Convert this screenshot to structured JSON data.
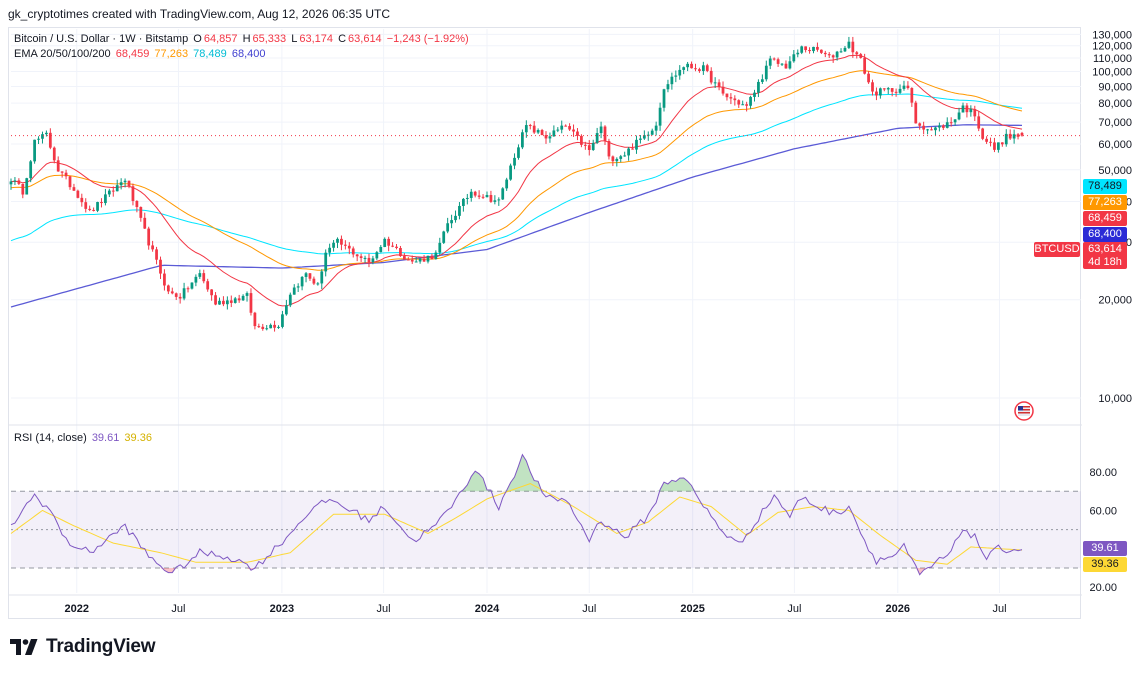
{
  "header": {
    "attribution": "gk_cryptotimes created with TradingView.com, Aug 12, 2026 06:35 UTC"
  },
  "legend": {
    "symbol": "Bitcoin / U.S. Dollar · 1W · Bitstamp",
    "open_label": "O",
    "open": "64,857",
    "high_label": "H",
    "high": "65,333",
    "low_label": "L",
    "low": "63,174",
    "close_label": "C",
    "close": "63,614",
    "change": "−1,243 (−1.92%)",
    "ema_label": "EMA 20/50/100/200",
    "ema20": "68,459",
    "ema50": "77,263",
    "ema100": "78,489",
    "ema200": "68,400"
  },
  "rsi_legend": {
    "label": "RSI (14, close)",
    "rsi": "39.61",
    "rsi_ma": "39.36"
  },
  "price_tags": {
    "ema100": "78,489",
    "ema50": "77,263",
    "ema20": "68,459",
    "ema200": "68,400",
    "symbol": "BTCUSD",
    "last": "63,614",
    "countdown": "4d 18h"
  },
  "colors": {
    "up": "#089981",
    "down": "#f23645",
    "ema20": "#f23645",
    "ema50": "#ff9800",
    "ema100": "#00e5ff",
    "ema200": "#5b5bd6",
    "rsi": "#7e57c2",
    "rsi_ma": "#fdd835",
    "rsi_band": "#7e57c2"
  },
  "brand": {
    "name": "TradingView",
    "icon": "tradingview-logo-icon"
  },
  "chart_data": [
    {
      "type": "candlestick",
      "title": "Bitcoin / U.S. Dollar · 1W · Bitstamp",
      "y_scale": "log",
      "y_ticks": [
        {
          "value": 10000,
          "label": "10,000"
        },
        {
          "value": 20000,
          "label": "20,000"
        },
        {
          "value": 30000,
          "label": "30,000"
        },
        {
          "value": 40000,
          "label": "40,000"
        },
        {
          "value": 50000,
          "label": "50,000"
        },
        {
          "value": 60000,
          "label": "60,000"
        },
        {
          "value": 70000,
          "label": "70,000"
        },
        {
          "value": 80000,
          "label": "80,000"
        },
        {
          "value": 90000,
          "label": "90,000"
        },
        {
          "value": 100000,
          "label": "100,000"
        },
        {
          "value": 110000,
          "label": "110,000"
        },
        {
          "value": 120000,
          "label": "120,000"
        },
        {
          "value": 130000,
          "label": "130,000"
        }
      ],
      "ylim": [
        8500,
        135000
      ],
      "x_ticks": [
        {
          "date": "2022-01-01",
          "label": "2022"
        },
        {
          "date": "2022-07-01",
          "label": "Jul"
        },
        {
          "date": "2023-01-01",
          "label": "2023"
        },
        {
          "date": "2023-07-01",
          "label": "Jul"
        },
        {
          "date": "2024-01-01",
          "label": "2024"
        },
        {
          "date": "2024-07-01",
          "label": "Jul"
        },
        {
          "date": "2025-01-01",
          "label": "2025"
        },
        {
          "date": "2025-07-01",
          "label": "Jul"
        },
        {
          "date": "2026-01-01",
          "label": "2026"
        },
        {
          "date": "2026-07-01",
          "label": "Jul"
        }
      ],
      "xlim": [
        "2021-09-06",
        "2026-11-23"
      ],
      "close_keypoints": [
        [
          "2021-09-06",
          47000
        ],
        [
          "2021-09-27",
          43000
        ],
        [
          "2021-10-18",
          61000
        ],
        [
          "2021-11-08",
          64000
        ],
        [
          "2021-11-29",
          50000
        ],
        [
          "2022-01-03",
          42000
        ],
        [
          "2022-01-24",
          37000
        ],
        [
          "2022-03-28",
          47000
        ],
        [
          "2022-05-09",
          30000
        ],
        [
          "2022-06-13",
          21000
        ],
        [
          "2022-07-04",
          20500
        ],
        [
          "2022-08-08",
          24000
        ],
        [
          "2022-09-05",
          19500
        ],
        [
          "2022-10-31",
          20500
        ],
        [
          "2022-11-14",
          16500
        ],
        [
          "2022-12-26",
          16800
        ],
        [
          "2023-01-16",
          21000
        ],
        [
          "2023-02-13",
          24000
        ],
        [
          "2023-03-06",
          22000
        ],
        [
          "2023-03-20",
          28000
        ],
        [
          "2023-04-10",
          30000
        ],
        [
          "2023-06-05",
          26000
        ],
        [
          "2023-07-03",
          30500
        ],
        [
          "2023-08-21",
          26000
        ],
        [
          "2023-10-02",
          27500
        ],
        [
          "2023-10-23",
          34000
        ],
        [
          "2023-12-04",
          43000
        ],
        [
          "2024-01-22",
          40000
        ],
        [
          "2024-02-26",
          60000
        ],
        [
          "2024-03-11",
          68000
        ],
        [
          "2024-04-15",
          63000
        ],
        [
          "2024-05-20",
          68000
        ],
        [
          "2024-07-01",
          57000
        ],
        [
          "2024-07-22",
          68000
        ],
        [
          "2024-08-05",
          54000
        ],
        [
          "2024-09-02",
          56000
        ],
        [
          "2024-09-30",
          62000
        ],
        [
          "2024-10-28",
          69000
        ],
        [
          "2024-11-11",
          90000
        ],
        [
          "2024-12-16",
          104000
        ],
        [
          "2025-01-20",
          102000
        ],
        [
          "2025-02-24",
          85000
        ],
        [
          "2025-04-07",
          78000
        ],
        [
          "2025-05-05",
          97000
        ],
        [
          "2025-05-19",
          108000
        ],
        [
          "2025-06-16",
          104000
        ],
        [
          "2025-07-14",
          118000
        ],
        [
          "2025-08-11",
          116000
        ],
        [
          "2025-09-01",
          110000
        ],
        [
          "2025-10-06",
          122000
        ],
        [
          "2025-10-27",
          108000
        ],
        [
          "2025-11-17",
          86000
        ],
        [
          "2025-12-22",
          88000
        ],
        [
          "2026-01-19",
          89000
        ],
        [
          "2026-02-02",
          70000
        ],
        [
          "2026-03-02",
          66000
        ],
        [
          "2026-04-06",
          70000
        ],
        [
          "2026-04-27",
          78000
        ],
        [
          "2026-05-18",
          74000
        ],
        [
          "2026-06-01",
          63000
        ],
        [
          "2026-06-22",
          58000
        ],
        [
          "2026-07-13",
          63000
        ],
        [
          "2026-08-10",
          63614
        ]
      ],
      "ema200_keypoints": [
        [
          "2021-09-06",
          19000
        ],
        [
          "2022-06-01",
          25500
        ],
        [
          "2023-01-01",
          25000
        ],
        [
          "2023-07-01",
          26000
        ],
        [
          "2024-01-01",
          28500
        ],
        [
          "2024-07-01",
          37000
        ],
        [
          "2025-01-01",
          47500
        ],
        [
          "2025-07-01",
          58000
        ],
        [
          "2026-01-01",
          67000
        ],
        [
          "2026-05-01",
          68700
        ],
        [
          "2026-08-10",
          68400
        ]
      ],
      "last": {
        "close": 63614,
        "open": 64857,
        "high": 65333,
        "low": 63174
      }
    },
    {
      "type": "line",
      "title": "RSI (14, close)",
      "ylim": [
        17,
        92
      ],
      "y_ticks": [
        {
          "value": 20,
          "label": "20.00"
        },
        {
          "value": 60,
          "label": "60.00"
        },
        {
          "value": 80,
          "label": "80.00"
        }
      ],
      "bands": [
        70,
        50,
        30
      ],
      "series": [
        {
          "name": "RSI"
        },
        {
          "name": "RSI MA"
        }
      ],
      "rsi_keypoints": [
        [
          "2021-09-06",
          52
        ],
        [
          "2021-10-18",
          68
        ],
        [
          "2021-11-15",
          60
        ],
        [
          "2021-12-13",
          44
        ],
        [
          "2022-01-24",
          38
        ],
        [
          "2022-03-28",
          52
        ],
        [
          "2022-05-09",
          36
        ],
        [
          "2022-06-20",
          27
        ],
        [
          "2022-08-08",
          38
        ],
        [
          "2022-09-26",
          36
        ],
        [
          "2022-11-14",
          30
        ],
        [
          "2023-01-16",
          48
        ],
        [
          "2023-02-13",
          58
        ],
        [
          "2023-03-27",
          66
        ],
        [
          "2023-06-05",
          55
        ],
        [
          "2023-07-03",
          62
        ],
        [
          "2023-08-21",
          44
        ],
        [
          "2023-10-02",
          52
        ],
        [
          "2023-11-13",
          68
        ],
        [
          "2023-12-11",
          82
        ],
        [
          "2024-01-22",
          62
        ],
        [
          "2024-03-04",
          88
        ],
        [
          "2024-04-15",
          66
        ],
        [
          "2024-05-20",
          66
        ],
        [
          "2024-07-01",
          45
        ],
        [
          "2024-07-22",
          55
        ],
        [
          "2024-09-02",
          46
        ],
        [
          "2024-10-14",
          57
        ],
        [
          "2024-11-11",
          74
        ],
        [
          "2024-12-16",
          78
        ],
        [
          "2025-01-13",
          65
        ],
        [
          "2025-02-24",
          49
        ],
        [
          "2025-03-24",
          42
        ],
        [
          "2025-05-05",
          59
        ],
        [
          "2025-05-26",
          68
        ],
        [
          "2025-06-23",
          57
        ],
        [
          "2025-07-14",
          67
        ],
        [
          "2025-08-11",
          62
        ],
        [
          "2025-09-15",
          58
        ],
        [
          "2025-10-06",
          63
        ],
        [
          "2025-11-03",
          44
        ],
        [
          "2025-11-24",
          34
        ],
        [
          "2025-12-22",
          36
        ],
        [
          "2026-01-12",
          41
        ],
        [
          "2026-02-09",
          26
        ],
        [
          "2026-03-02",
          31
        ],
        [
          "2026-04-06",
          38
        ],
        [
          "2026-04-27",
          51
        ],
        [
          "2026-05-18",
          46
        ],
        [
          "2026-06-08",
          35
        ],
        [
          "2026-06-29",
          40
        ],
        [
          "2026-08-10",
          39.61
        ]
      ],
      "rsi_ma_keypoints": [
        [
          "2021-09-06",
          48
        ],
        [
          "2021-11-01",
          60
        ],
        [
          "2021-12-27",
          52
        ],
        [
          "2022-03-07",
          43
        ],
        [
          "2022-05-30",
          38
        ],
        [
          "2022-08-01",
          33
        ],
        [
          "2022-11-01",
          33
        ],
        [
          "2023-01-16",
          38
        ],
        [
          "2023-04-03",
          58
        ],
        [
          "2023-07-03",
          58
        ],
        [
          "2023-09-18",
          48
        ],
        [
          "2023-11-06",
          56
        ],
        [
          "2024-01-01",
          66
        ],
        [
          "2024-03-18",
          74
        ],
        [
          "2024-06-03",
          62
        ],
        [
          "2024-08-19",
          48
        ],
        [
          "2024-10-14",
          54
        ],
        [
          "2024-12-09",
          67
        ],
        [
          "2025-02-03",
          62
        ],
        [
          "2025-04-07",
          47
        ],
        [
          "2025-06-02",
          59
        ],
        [
          "2025-08-04",
          62
        ],
        [
          "2025-10-06",
          60
        ],
        [
          "2025-12-01",
          47
        ],
        [
          "2026-02-02",
          34
        ],
        [
          "2026-03-30",
          32
        ],
        [
          "2026-05-11",
          41
        ],
        [
          "2026-08-10",
          39.36
        ]
      ]
    }
  ]
}
